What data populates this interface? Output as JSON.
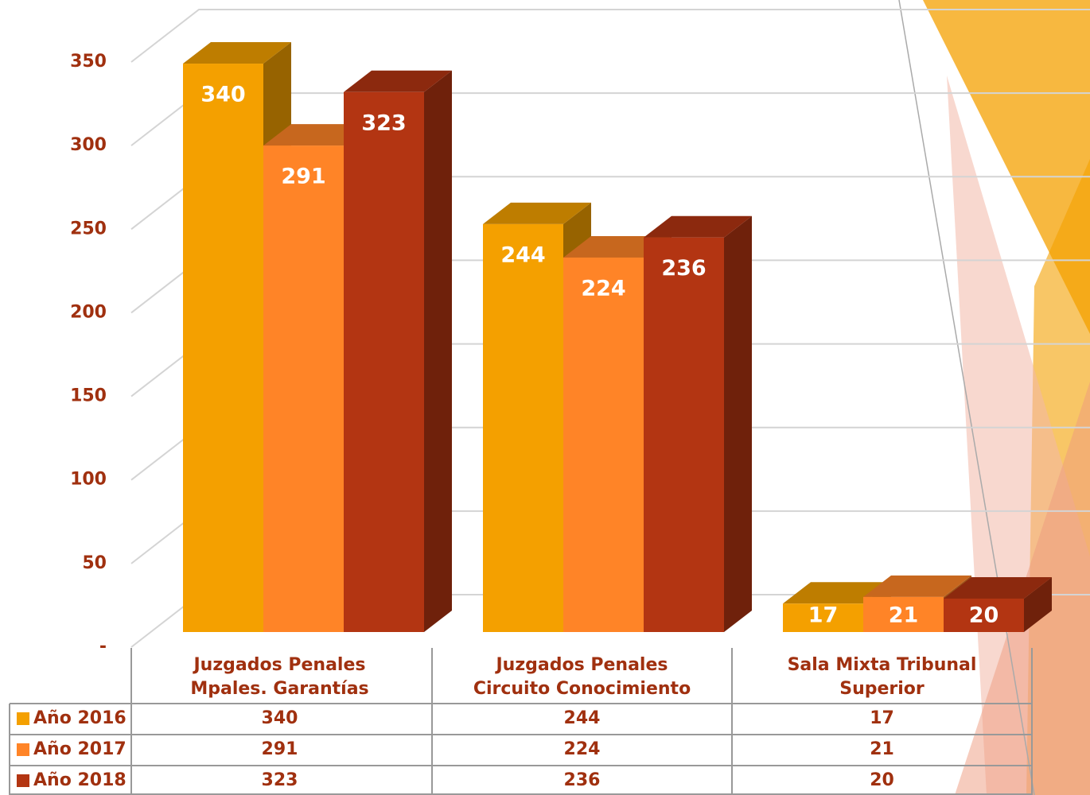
{
  "chart_data": {
    "type": "bar3d",
    "categories": [
      "Juzgados Penales Mpales. Garantías",
      "Juzgados Penales Circuito Conocimiento",
      "Sala Mixta Tribunal Superior"
    ],
    "series": [
      {
        "name": "Año 2016",
        "color": "#f4a000",
        "values": [
          340,
          244,
          17
        ]
      },
      {
        "name": "Año 2017",
        "color": "#ff8427",
        "values": [
          291,
          224,
          21
        ]
      },
      {
        "name": "Año 2018",
        "color": "#b33512",
        "values": [
          323,
          236,
          20
        ]
      }
    ],
    "ylim": [
      0,
      350
    ],
    "yticks": [
      {
        "value": 0,
        "label": "-"
      },
      50,
      100,
      150,
      200,
      250,
      300,
      350
    ],
    "grid": true
  }
}
